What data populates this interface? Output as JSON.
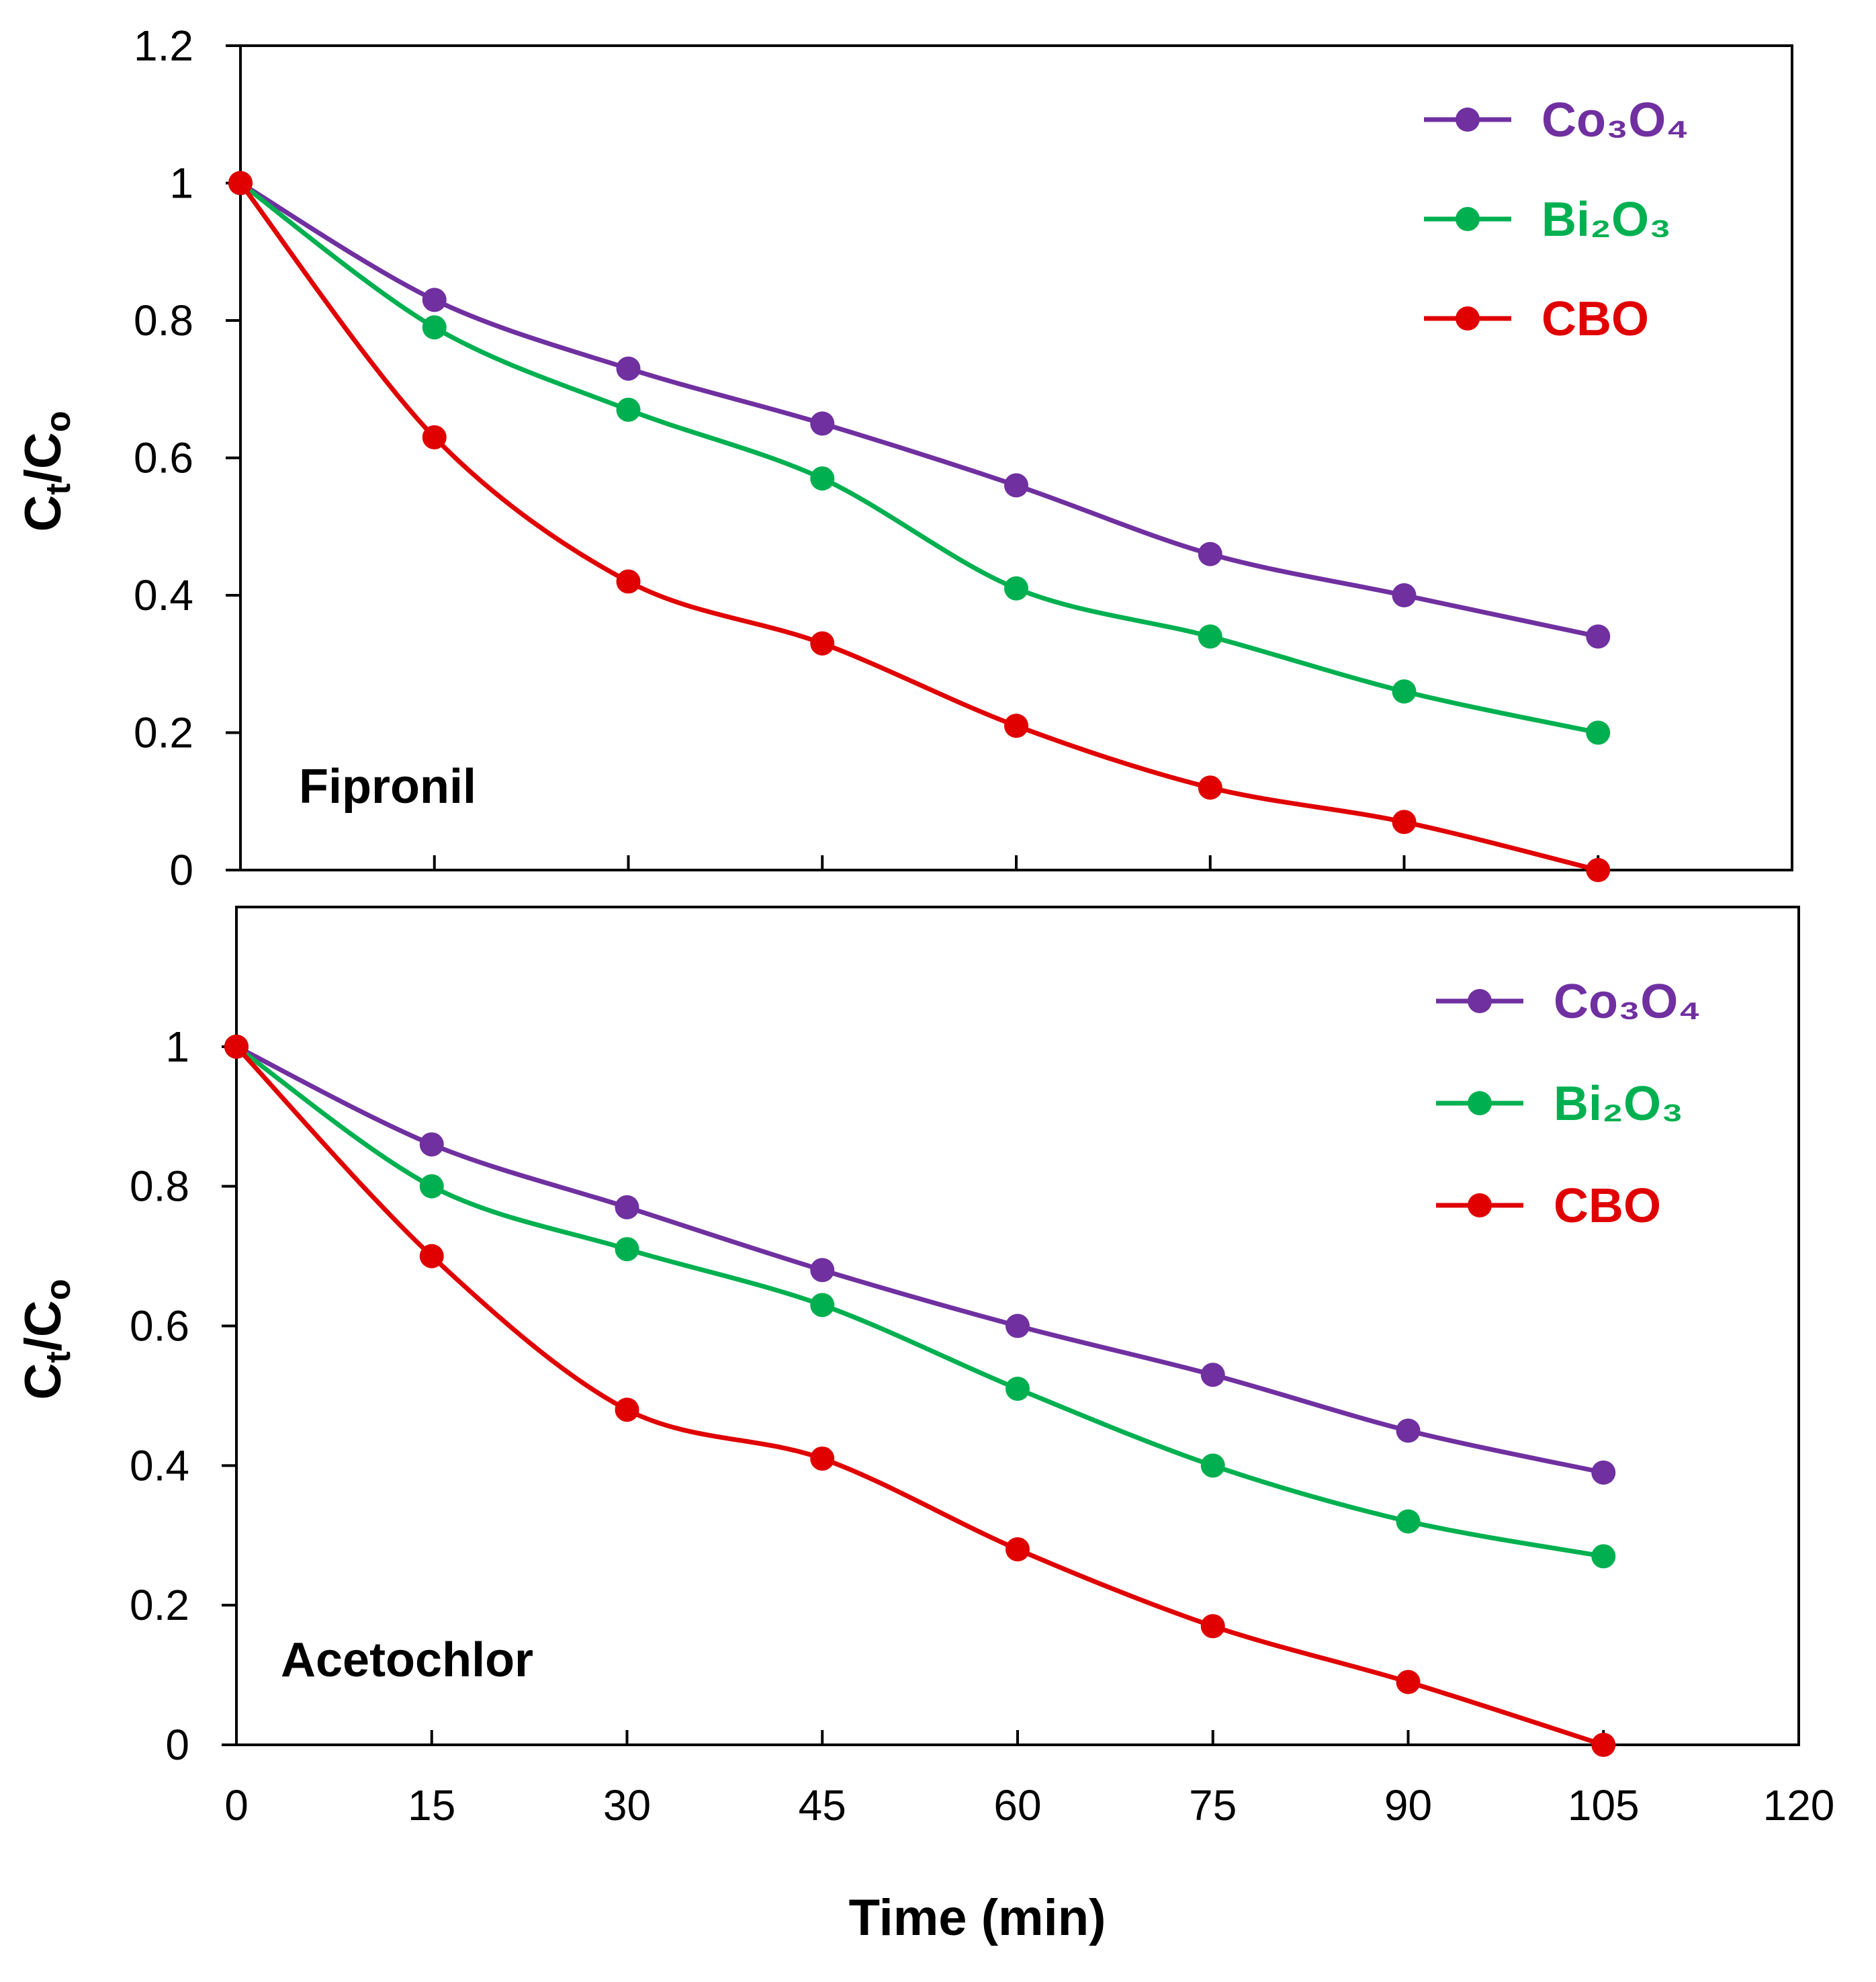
{
  "chart_data": [
    {
      "type": "line",
      "panel_label": "Fipronil",
      "xlabel": "",
      "ylabel": "Ct/Co",
      "xlim": [
        0,
        120
      ],
      "ylim": [
        0,
        1.2
      ],
      "x_ticks": [
        "0",
        "15",
        "30",
        "45",
        "60",
        "75",
        "90",
        "105",
        "120"
      ],
      "y_ticks": [
        "0",
        "0.2",
        "0.4",
        "0.6",
        "0.8",
        "1",
        "1.2"
      ],
      "x": [
        0,
        15,
        30,
        45,
        60,
        75,
        90,
        105
      ],
      "legend_position": "top-right",
      "series": [
        {
          "name": "Co₃O₄",
          "color": "#7030A0",
          "values": [
            1.0,
            0.83,
            0.73,
            0.65,
            0.56,
            0.46,
            0.4,
            0.34
          ]
        },
        {
          "name": "Bi₂O₃",
          "color": "#00B050",
          "values": [
            1.0,
            0.79,
            0.67,
            0.57,
            0.41,
            0.34,
            0.26,
            0.2
          ]
        },
        {
          "name": "CBO",
          "color": "#E00000",
          "values": [
            1.0,
            0.63,
            0.42,
            0.33,
            0.21,
            0.12,
            0.07,
            0.0
          ]
        }
      ]
    },
    {
      "type": "line",
      "panel_label": "Acetochlor",
      "xlabel": "Time (min)",
      "ylabel": "Ct/Co",
      "xlim": [
        0,
        120
      ],
      "ylim": [
        0,
        1.2
      ],
      "x_ticks": [
        "0",
        "15",
        "30",
        "45",
        "60",
        "75",
        "90",
        "105",
        "120"
      ],
      "y_ticks": [
        "0",
        "0.2",
        "0.4",
        "0.6",
        "0.8",
        "1"
      ],
      "x": [
        0,
        15,
        30,
        45,
        60,
        75,
        90,
        105
      ],
      "legend_position": "top-right",
      "series": [
        {
          "name": "Co₃O₄",
          "color": "#7030A0",
          "values": [
            1.0,
            0.86,
            0.77,
            0.68,
            0.6,
            0.53,
            0.45,
            0.39
          ]
        },
        {
          "name": "Bi₂O₃",
          "color": "#00B050",
          "values": [
            1.0,
            0.8,
            0.71,
            0.63,
            0.51,
            0.4,
            0.32,
            0.27
          ]
        },
        {
          "name": "CBO",
          "color": "#E00000",
          "values": [
            1.0,
            0.7,
            0.48,
            0.41,
            0.28,
            0.17,
            0.09,
            0.0
          ]
        }
      ]
    }
  ]
}
